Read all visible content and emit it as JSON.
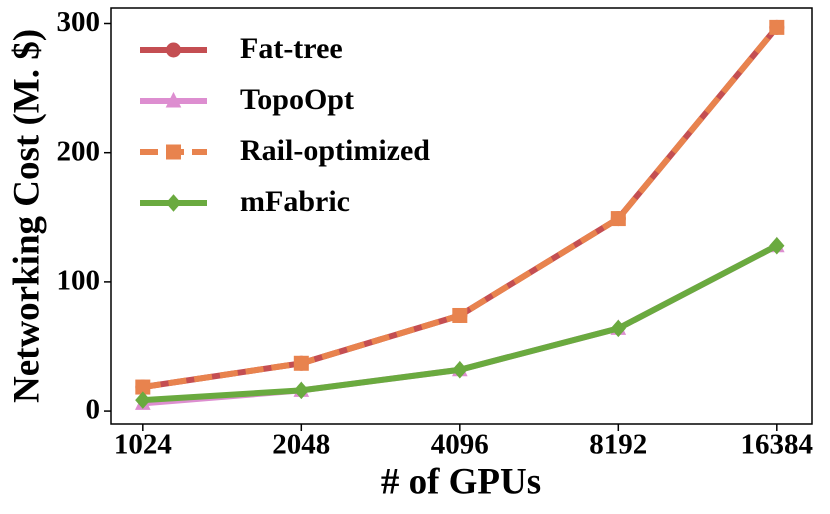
{
  "chart_data": {
    "type": "line",
    "xlabel": "# of GPUs",
    "ylabel": "Networking Cost (M. $)",
    "x": [
      1024,
      2048,
      4096,
      8192,
      16384
    ],
    "xscale": "log2",
    "xlim": [
      891,
      19110
    ],
    "ylim": [
      -10,
      312
    ],
    "xticks": [
      1024,
      2048,
      4096,
      8192,
      16384
    ],
    "yticks": [
      0,
      100,
      200,
      300
    ],
    "legend": "upper left",
    "series": [
      {
        "name": "Fat-tree",
        "color": "#c44e52",
        "marker": "circle",
        "dash": "solid",
        "values": [
          18.6,
          37,
          74,
          149,
          297
        ]
      },
      {
        "name": "TopoOpt",
        "color": "#dd8ed0",
        "marker": "triangle",
        "dash": "solid",
        "values": [
          6,
          16,
          32,
          64,
          128
        ]
      },
      {
        "name": "Rail-optimized",
        "color": "#e8834e",
        "marker": "square",
        "dash": "dashed",
        "values": [
          18.6,
          37,
          74,
          149,
          297
        ]
      },
      {
        "name": "mFabric",
        "color": "#6aaa3f",
        "marker": "diamond",
        "dash": "solid",
        "values": [
          8.5,
          16,
          32,
          64,
          128
        ]
      }
    ]
  }
}
